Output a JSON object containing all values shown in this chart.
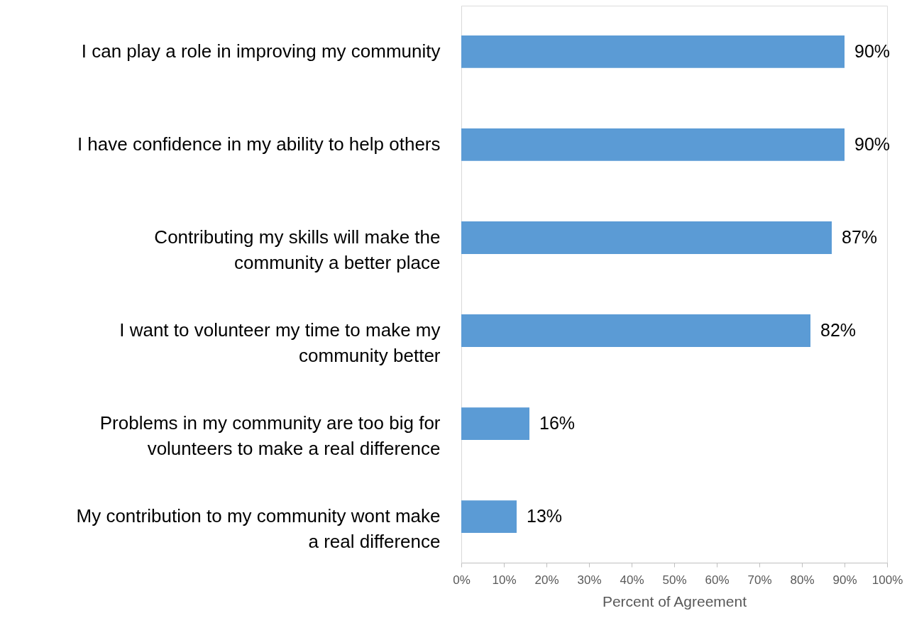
{
  "chart_data": {
    "type": "bar",
    "orientation": "horizontal",
    "xlabel": "Percent of Agreement",
    "categories": [
      "I can play a role in improving my community",
      "I have confidence in my ability to help others",
      "Contributing my skills will make the\ncommunity a better place",
      "I want to volunteer my time to make my\ncommunity better",
      "Problems in my community are too big for\nvolunteers to make a real difference",
      "My contribution to my community wont make\na real difference"
    ],
    "values": [
      90,
      90,
      87,
      82,
      16,
      13
    ],
    "value_labels": [
      "90%",
      "90%",
      "87%",
      "82%",
      "16%",
      "13%"
    ],
    "color": "#5b9bd5",
    "xlim": [
      0,
      100
    ],
    "xticks": [
      {
        "value": 0,
        "label": "0%"
      },
      {
        "value": 10,
        "label": "10%"
      },
      {
        "value": 20,
        "label": "20%"
      },
      {
        "value": 30,
        "label": "30%"
      },
      {
        "value": 40,
        "label": "40%"
      },
      {
        "value": 50,
        "label": "50%"
      },
      {
        "value": 60,
        "label": "60%"
      },
      {
        "value": 70,
        "label": "70%"
      },
      {
        "value": 80,
        "label": "80%"
      },
      {
        "value": 90,
        "label": "90%"
      },
      {
        "value": 100,
        "label": "100%"
      }
    ],
    "grid": false
  }
}
